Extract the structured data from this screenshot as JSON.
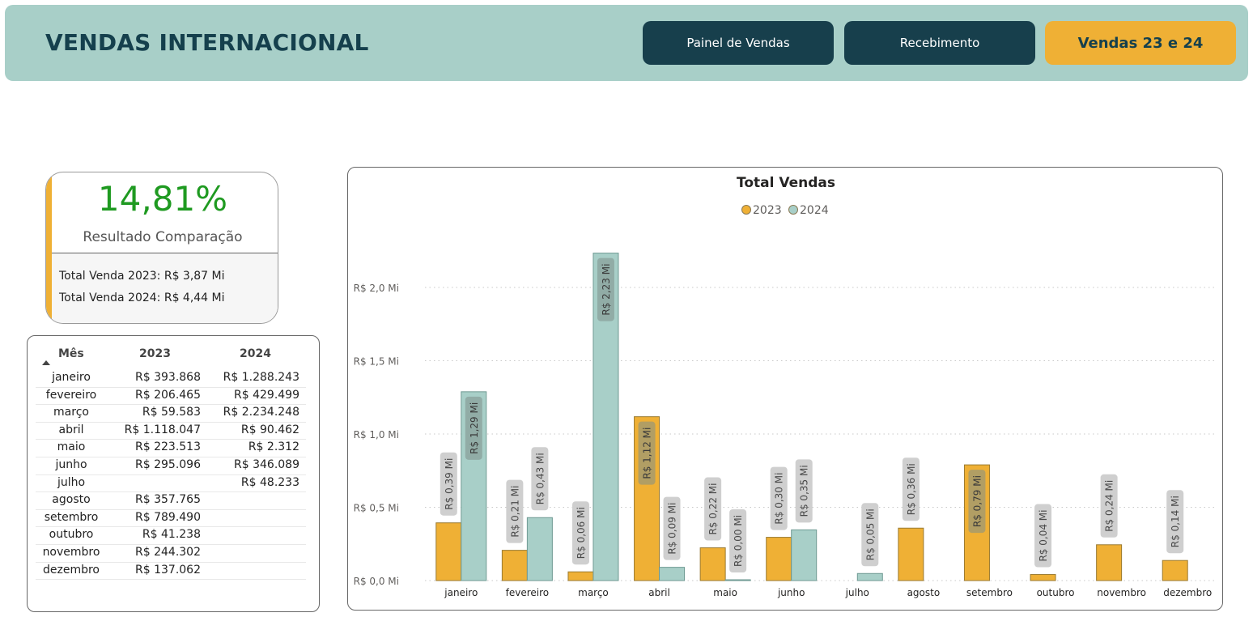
{
  "header": {
    "title": "VENDAS INTERNACIONAL",
    "nav": [
      {
        "label": "Painel de Vendas",
        "active": false
      },
      {
        "label": "Recebimento",
        "active": false
      },
      {
        "label": "Vendas 23 e 24",
        "active": true
      }
    ]
  },
  "kpi": {
    "percent": "14,81%",
    "label": "Resultado Comparação",
    "total_2023": "Total Venda 2023: R$ 3,87 Mi",
    "total_2024": "Total Venda 2024: R$ 4,44 Mi"
  },
  "table": {
    "headers": [
      "Mês",
      "2023",
      "2024"
    ],
    "rows": [
      {
        "mes": "janeiro",
        "v2023": "R$ 393.868",
        "v2024": "R$ 1.288.243"
      },
      {
        "mes": "fevereiro",
        "v2023": "R$ 206.465",
        "v2024": "R$ 429.499"
      },
      {
        "mes": "março",
        "v2023": "R$ 59.583",
        "v2024": "R$ 2.234.248"
      },
      {
        "mes": "abril",
        "v2023": "R$ 1.118.047",
        "v2024": "R$ 90.462"
      },
      {
        "mes": "maio",
        "v2023": "R$ 223.513",
        "v2024": "R$ 2.312"
      },
      {
        "mes": "junho",
        "v2023": "R$ 295.096",
        "v2024": "R$ 346.089"
      },
      {
        "mes": "julho",
        "v2023": "",
        "v2024": "R$ 48.233"
      },
      {
        "mes": "agosto",
        "v2023": "R$ 357.765",
        "v2024": ""
      },
      {
        "mes": "setembro",
        "v2023": "R$ 789.490",
        "v2024": ""
      },
      {
        "mes": "outubro",
        "v2023": "R$ 41.238",
        "v2024": ""
      },
      {
        "mes": "novembro",
        "v2023": "R$ 244.302",
        "v2024": ""
      },
      {
        "mes": "dezembro",
        "v2023": "R$ 137.062",
        "v2024": ""
      }
    ]
  },
  "colors": {
    "s2023": "#efb035",
    "s2024": "#a8cfc8",
    "header_bg": "#a8cfc8",
    "dark": "#173f4c",
    "accent_green": "#1f9a21"
  },
  "chart_data": {
    "type": "bar",
    "title": "Total Vendas",
    "xlabel": "",
    "ylabel": "",
    "legend_position": "top-center",
    "grid": true,
    "ylim": [
      0,
      2.3
    ],
    "yticks": [
      {
        "value": 0,
        "label": "R$ 0,0 Mi"
      },
      {
        "value": 0.5,
        "label": "R$ 0,5 Mi"
      },
      {
        "value": 1.0,
        "label": "R$ 1,0 Mi"
      },
      {
        "value": 1.5,
        "label": "R$ 1,5 Mi"
      },
      {
        "value": 2.0,
        "label": "R$ 2,0 Mi"
      }
    ],
    "categories": [
      "janeiro",
      "fevereiro",
      "março",
      "abril",
      "maio",
      "junho",
      "julho",
      "agosto",
      "setembro",
      "outubro",
      "novembro",
      "dezembro"
    ],
    "series": [
      {
        "name": "2023",
        "color": "#efb035",
        "values": [
          0.393868,
          0.206465,
          0.059583,
          1.118047,
          0.223513,
          0.295096,
          null,
          0.357765,
          0.78949,
          0.041238,
          0.244302,
          0.137062
        ],
        "labels": [
          "R$ 0,39 Mi",
          "R$ 0,21 Mi",
          "R$ 0,06 Mi",
          "R$ 1,12 Mi",
          "R$ 0,22 Mi",
          "R$ 0,30 Mi",
          "",
          "R$ 0,36 Mi",
          "R$ 0,79 Mi",
          "R$ 0,04 Mi",
          "R$ 0,24 Mi",
          "R$ 0,14 Mi"
        ]
      },
      {
        "name": "2024",
        "color": "#a8cfc8",
        "values": [
          1.288243,
          0.429499,
          2.234248,
          0.090462,
          0.002312,
          0.346089,
          0.048233,
          null,
          null,
          null,
          null,
          null
        ],
        "labels": [
          "R$ 1,29 Mi",
          "R$ 0,43 Mi",
          "R$ 2,23 Mi",
          "R$ 0,09 Mi",
          "R$ 0,00 Mi",
          "R$ 0,35 Mi",
          "R$ 0,05 Mi",
          "",
          "",
          "",
          "",
          ""
        ]
      }
    ]
  }
}
